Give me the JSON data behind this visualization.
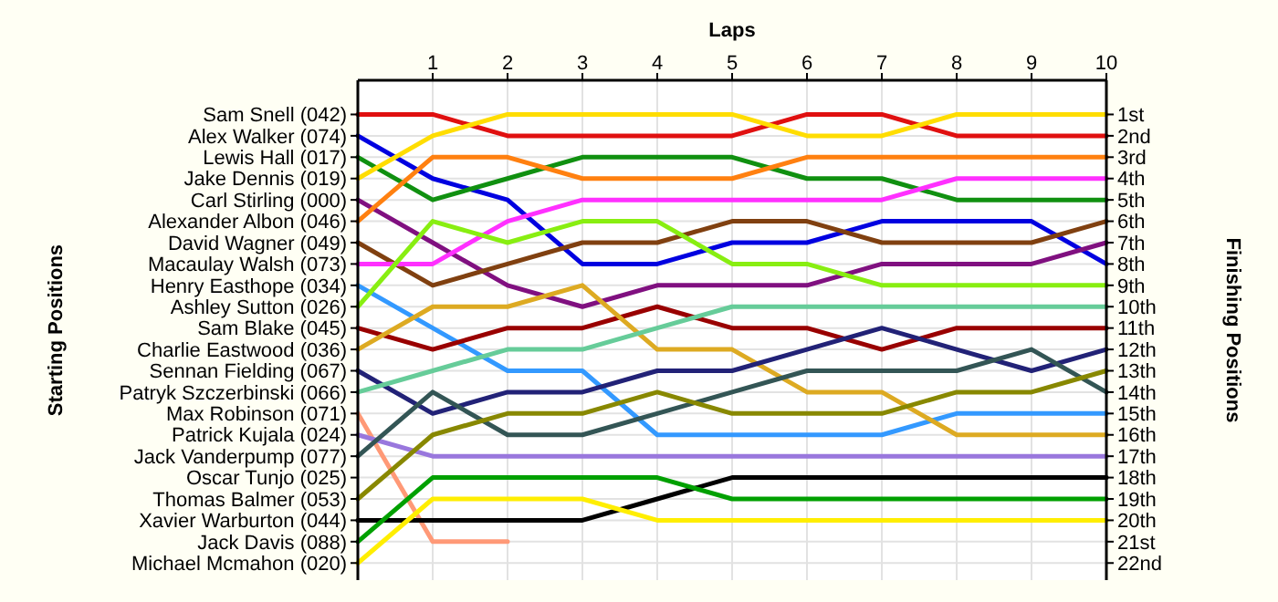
{
  "chart_data": {
    "type": "line",
    "xlabel": "Laps",
    "ylabel": "Finishing Positions",
    "x": [
      0,
      1,
      2,
      3,
      4,
      5,
      6,
      7,
      8,
      9,
      10
    ],
    "xlim": [
      0,
      10
    ],
    "xticks": [
      1,
      2,
      3,
      4,
      5,
      6,
      7,
      8,
      9,
      10
    ],
    "ylim": [
      22.8,
      -0.6
    ],
    "yticks": [
      {
        "value": 1,
        "label": "1st"
      },
      {
        "value": 2,
        "label": "2nd"
      },
      {
        "value": 3,
        "label": "3rd"
      },
      {
        "value": 4,
        "label": "4th"
      },
      {
        "value": 5,
        "label": "5th"
      },
      {
        "value": 6,
        "label": "6th"
      },
      {
        "value": 7,
        "label": "7th"
      },
      {
        "value": 8,
        "label": "8th"
      },
      {
        "value": 9,
        "label": "9th"
      },
      {
        "value": 10,
        "label": "10th"
      },
      {
        "value": 11,
        "label": "11th"
      },
      {
        "value": 12,
        "label": "12th"
      },
      {
        "value": 13,
        "label": "13th"
      },
      {
        "value": 14,
        "label": "14th"
      },
      {
        "value": 15,
        "label": "15th"
      },
      {
        "value": 16,
        "label": "16th"
      },
      {
        "value": 17,
        "label": "17th"
      },
      {
        "value": 18,
        "label": "18th"
      },
      {
        "value": 19,
        "label": "19th"
      },
      {
        "value": 20,
        "label": "20th"
      },
      {
        "value": 21,
        "label": "21st"
      },
      {
        "value": 22,
        "label": "22nd"
      }
    ],
    "annotations": [
      "Starting Positions",
      "Sam Snell (042)",
      "Alex Walker (074)",
      "Lewis Hall (017)",
      "Jake Dennis (019)",
      "Carl Stirling (000)",
      "Alexander Albon (046)",
      "David Wagner (049)",
      "Macaulay Walsh (073)",
      "Henry Easthope (034)",
      "Ashley Sutton (026)",
      "Sam Blake (045)",
      "Charlie Eastwood (036)",
      "Sennan Fielding (067)",
      "Patryk Szczerbinski (066)",
      "Max Robinson (071)",
      "Patrick Kujala (024)",
      "Jack Vanderpump (077)",
      "Oscar Tunjo (025)",
      "Thomas Balmer (053)",
      "Xavier Warburton (044)",
      "Jack Davis (088)",
      "Michael Mcmahon (020)"
    ],
    "grid": true,
    "marker": "none",
    "line_style": "solid",
    "series": [
      {
        "color": "#e01010",
        "values": [
          1,
          1,
          2,
          2,
          2,
          2,
          1,
          1,
          2,
          2,
          2
        ]
      },
      {
        "color": "#0000e0",
        "values": [
          2,
          4,
          5,
          8,
          8,
          7,
          7,
          6,
          6,
          6,
          8
        ]
      },
      {
        "color": "#109010",
        "values": [
          3,
          5,
          4,
          3,
          3,
          3,
          4,
          4,
          5,
          5,
          5
        ]
      },
      {
        "color": "#ffdd00",
        "values": [
          4,
          2,
          1,
          1,
          1,
          1,
          2,
          2,
          1,
          1,
          1
        ]
      },
      {
        "color": "#801080",
        "values": [
          5,
          7,
          9,
          10,
          9,
          9,
          9,
          8,
          8,
          8,
          7
        ]
      },
      {
        "color": "#ff8010",
        "values": [
          6,
          3,
          3,
          4,
          4,
          4,
          3,
          3,
          3,
          3,
          3
        ]
      },
      {
        "color": "#804010",
        "values": [
          7,
          9,
          8,
          7,
          7,
          6,
          6,
          7,
          7,
          7,
          6
        ]
      },
      {
        "color": "#ff30ff",
        "values": [
          8,
          8,
          6,
          5,
          5,
          5,
          5,
          5,
          4,
          4,
          4
        ]
      },
      {
        "color": "#3399ff",
        "values": [
          9,
          11,
          13,
          13,
          16,
          16,
          16,
          16,
          15,
          15,
          15
        ]
      },
      {
        "color": "#88ee11",
        "values": [
          10,
          6,
          7,
          6,
          6,
          8,
          8,
          9,
          9,
          9,
          9
        ]
      },
      {
        "color": "#990000",
        "values": [
          11,
          12,
          11,
          11,
          10,
          11,
          11,
          12,
          11,
          11,
          11
        ]
      },
      {
        "color": "#ddaa22",
        "values": [
          12,
          10,
          10,
          9,
          12,
          12,
          14,
          14,
          16,
          16,
          16
        ]
      },
      {
        "color": "#222277",
        "values": [
          13,
          15,
          14,
          14,
          13,
          13,
          12,
          11,
          12,
          13,
          12
        ]
      },
      {
        "color": "#66cc99",
        "values": [
          14,
          13,
          12,
          12,
          11,
          10,
          10,
          10,
          10,
          10,
          10
        ]
      },
      {
        "color": "#ff9977",
        "values": [
          15,
          21,
          21,
          null,
          null,
          null,
          null,
          null,
          null,
          null,
          null
        ]
      },
      {
        "color": "#9977dd",
        "values": [
          16,
          17,
          17,
          17,
          17,
          17,
          17,
          17,
          17,
          17,
          17
        ]
      },
      {
        "color": "#335555",
        "values": [
          17,
          14,
          16,
          16,
          15,
          14,
          13,
          13,
          13,
          12,
          14
        ]
      },
      {
        "color": "#888800",
        "values": [
          19,
          16,
          15,
          15,
          14,
          15,
          15,
          15,
          14,
          14,
          13
        ]
      },
      {
        "color": "#000000",
        "values": [
          20,
          20,
          20,
          20,
          19,
          18,
          18,
          18,
          18,
          18,
          18
        ]
      },
      {
        "color": "#00a000",
        "values": [
          21,
          18,
          18,
          18,
          18,
          19,
          19,
          19,
          19,
          19,
          19
        ]
      },
      {
        "color": "#ffee00",
        "values": [
          22,
          19,
          19,
          19,
          20,
          20,
          20,
          20,
          20,
          20,
          20
        ]
      }
    ]
  }
}
